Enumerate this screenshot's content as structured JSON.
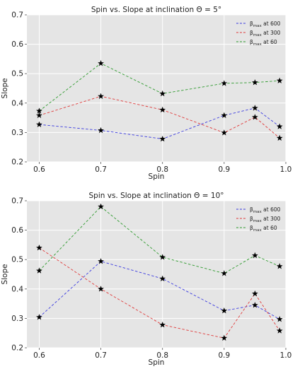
{
  "chart_data": [
    {
      "type": "line",
      "title": "Spin vs. Slope at inclination Θ = 5°",
      "xlabel": "Spin",
      "ylabel": "Slope",
      "xlim": [
        0.58,
        1.0
      ],
      "ylim": [
        0.2,
        0.7
      ],
      "xticks": [
        "0.6",
        "0.7",
        "0.8",
        "0.9",
        "1.0"
      ],
      "yticks": [
        "0.2",
        "0.3",
        "0.4",
        "0.5",
        "0.6",
        "0.7"
      ],
      "grid": true,
      "legend_position": "top-right",
      "x": [
        0.6,
        0.7,
        0.8,
        0.9,
        0.95,
        0.99
      ],
      "series": [
        {
          "name": "βmax at 600",
          "label_main": "β",
          "label_sub": "max",
          "label_rest": " at 600",
          "color": "#3a3ae0",
          "values": [
            0.327,
            0.307,
            0.278,
            0.358,
            0.383,
            0.32
          ]
        },
        {
          "name": "βmax at 300",
          "label_main": "β",
          "label_sub": "max",
          "label_rest": " at 300",
          "color": "#e03a3a",
          "values": [
            0.358,
            0.423,
            0.377,
            0.299,
            0.352,
            0.281
          ]
        },
        {
          "name": "βmax at 60",
          "label_main": "β",
          "label_sub": "max",
          "label_rest": " at 60",
          "color": "#2e9a2e",
          "values": [
            0.373,
            0.535,
            0.432,
            0.467,
            0.47,
            0.476
          ]
        }
      ]
    },
    {
      "type": "line",
      "title": "Spin vs. Slope at inclination Θ = 10°",
      "xlabel": "Spin",
      "ylabel": "Slope",
      "xlim": [
        0.58,
        1.0
      ],
      "ylim": [
        0.2,
        0.7
      ],
      "xticks": [
        "0.6",
        "0.7",
        "0.8",
        "0.9",
        "1.0"
      ],
      "yticks": [
        "0.2",
        "0.3",
        "0.4",
        "0.5",
        "0.6",
        "0.7"
      ],
      "grid": true,
      "legend_position": "top-right",
      "x": [
        0.6,
        0.7,
        0.8,
        0.9,
        0.95,
        0.99
      ],
      "series": [
        {
          "name": "βmax at 600",
          "label_main": "β",
          "label_sub": "max",
          "label_rest": " at 600",
          "color": "#3a3ae0",
          "values": [
            0.304,
            0.494,
            0.435,
            0.326,
            0.345,
            0.297
          ]
        },
        {
          "name": "βmax at 300",
          "label_main": "β",
          "label_sub": "max",
          "label_rest": " at 300",
          "color": "#e03a3a",
          "values": [
            0.54,
            0.4,
            0.278,
            0.233,
            0.384,
            0.258
          ]
        },
        {
          "name": "βmax at 60",
          "label_main": "β",
          "label_sub": "max",
          "label_rest": " at 60",
          "color": "#2e9a2e",
          "values": [
            0.462,
            0.68,
            0.508,
            0.453,
            0.514,
            0.477
          ]
        }
      ]
    }
  ]
}
